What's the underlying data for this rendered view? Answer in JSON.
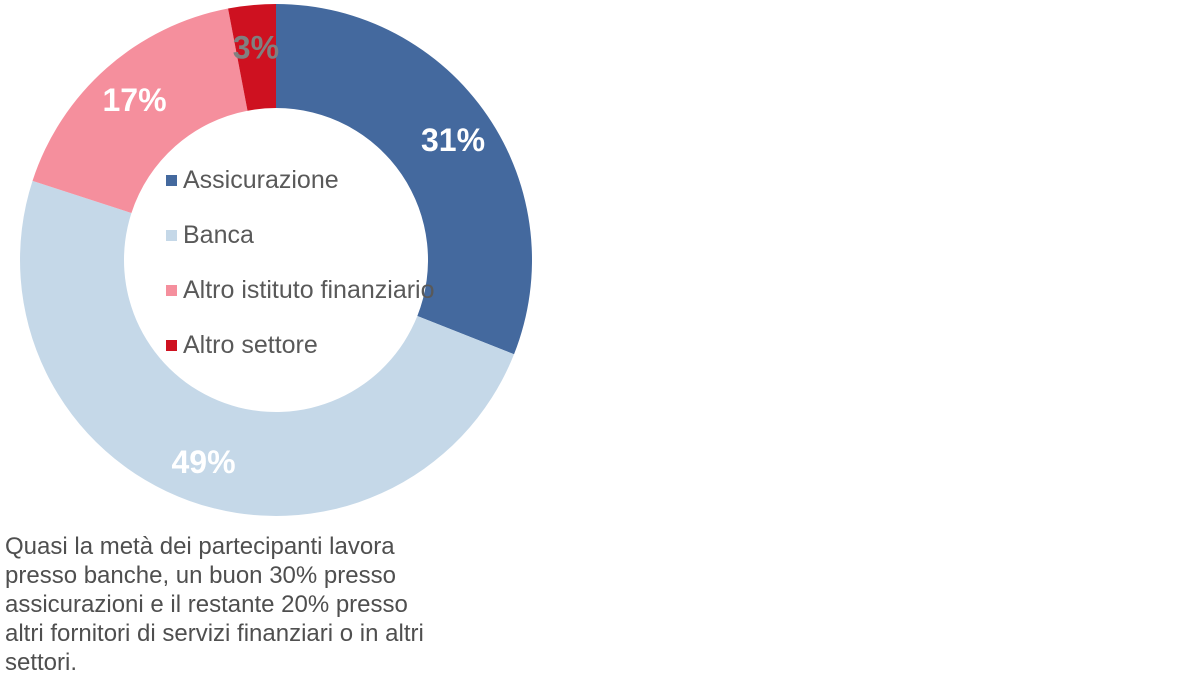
{
  "chart_data": {
    "type": "pie",
    "subtype": "donut",
    "start_angle_deg": 0,
    "direction": "clockwise",
    "legend_position": "center-of-donut",
    "segments": [
      {
        "label": "Assicurazione",
        "value": 31,
        "color": "#44699E",
        "data_label": "31%",
        "data_label_color": "#FFFFFF"
      },
      {
        "label": "Banca",
        "value": 49,
        "color": "#C5D8E8",
        "data_label": "49%",
        "data_label_color": "#FFFFFF"
      },
      {
        "label": "Altro istituto finanziario",
        "value": 17,
        "color": "#F58F9D",
        "data_label": "17%",
        "data_label_color": "#FFFFFF"
      },
      {
        "label": "Altro settore",
        "value": 3,
        "color": "#CE1120",
        "data_label": "3%",
        "data_label_color": "#808080"
      }
    ]
  },
  "caption": {
    "lines": [
      "Quasi la metà dei partecipanti lavora",
      "presso banche, un buon 30% presso",
      "assicurazioni e il restante 20% presso",
      "altri fornitori di servizi finanziari o in altri",
      "settori."
    ],
    "text": "Quasi la metà dei partecipanti lavora presso banche, un buon 30% presso assicurazioni e il restante 20% presso altri fornitori di servizi finanziari o in altri settori.",
    "color": "#4f4f4f"
  },
  "legend_text_color": "#595959"
}
